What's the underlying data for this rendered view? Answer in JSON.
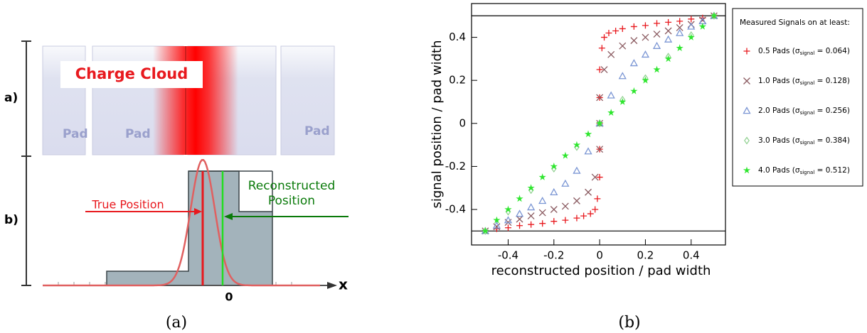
{
  "panel_a": {
    "row_labels": [
      "a)",
      "b)"
    ],
    "charge_cloud": "Charge Cloud",
    "pads": [
      "Pad",
      "Pad",
      "Pad"
    ],
    "true_position": "True Position",
    "reconstructed_position": [
      "Reconstructed",
      "Position"
    ],
    "origin": "0",
    "axis": "x"
  },
  "captions": [
    "(a)",
    "(b)"
  ],
  "chart_data": {
    "type": "scatter",
    "x_label": "reconstructed position / pad width",
    "y_label": "signal position / pad width",
    "legend_title": "Measured Signals on at least:",
    "xlim": [
      -0.56,
      0.55
    ],
    "ylim": [
      -0.565,
      0.557
    ],
    "xticks": [
      -0.4,
      -0.2,
      0,
      0.2,
      0.4
    ],
    "yticks": [
      -0.4,
      -0.2,
      0,
      0.2,
      0.4
    ],
    "hlines": [
      -0.5,
      0.5
    ],
    "series": [
      {
        "name": "0.5 Pads (σ",
        "name_sub": "signal",
        "name_tail": " = 0.064)",
        "color": "#e8191e",
        "marker": "plus",
        "x": [
          -0.45,
          -0.4,
          -0.35,
          -0.3,
          -0.25,
          -0.2,
          -0.15,
          -0.1,
          -0.07,
          -0.04,
          -0.02,
          -0.01,
          0,
          0,
          0,
          0,
          0,
          0.01,
          0.02,
          0.04,
          0.07,
          0.1,
          0.15,
          0.2,
          0.25,
          0.3,
          0.35,
          0.4,
          0.45,
          0.5
        ],
        "values": [
          -0.49,
          -0.485,
          -0.475,
          -0.47,
          -0.465,
          -0.455,
          -0.45,
          -0.44,
          -0.43,
          -0.42,
          -0.4,
          -0.35,
          -0.25,
          -0.12,
          0,
          0.12,
          0.25,
          0.35,
          0.4,
          0.42,
          0.43,
          0.44,
          0.45,
          0.455,
          0.465,
          0.47,
          0.475,
          0.485,
          0.49,
          0.5
        ]
      },
      {
        "name": "1.0 Pads (σ",
        "name_sub": "signal",
        "name_tail": " = 0.128)",
        "color": "#8a5a60",
        "marker": "cross",
        "x": [
          -0.5,
          -0.45,
          -0.4,
          -0.35,
          -0.3,
          -0.25,
          -0.2,
          -0.15,
          -0.1,
          -0.05,
          -0.02,
          0,
          0,
          0,
          0.02,
          0.05,
          0.1,
          0.15,
          0.2,
          0.25,
          0.3,
          0.35,
          0.4,
          0.45,
          0.5
        ],
        "values": [
          -0.5,
          -0.48,
          -0.46,
          -0.445,
          -0.43,
          -0.415,
          -0.4,
          -0.385,
          -0.36,
          -0.32,
          -0.25,
          -0.12,
          0,
          0.12,
          0.25,
          0.32,
          0.36,
          0.385,
          0.4,
          0.415,
          0.43,
          0.445,
          0.46,
          0.48,
          0.5
        ]
      },
      {
        "name": "2.0 Pads (σ",
        "name_sub": "signal",
        "name_tail": " = 0.256)",
        "color": "#7b96d4",
        "marker": "triangle",
        "x": [
          -0.5,
          -0.45,
          -0.4,
          -0.35,
          -0.3,
          -0.25,
          -0.2,
          -0.15,
          -0.1,
          -0.05,
          0,
          0.05,
          0.1,
          0.15,
          0.2,
          0.25,
          0.3,
          0.35,
          0.4,
          0.45,
          0.5
        ],
        "values": [
          -0.5,
          -0.475,
          -0.45,
          -0.42,
          -0.39,
          -0.36,
          -0.32,
          -0.28,
          -0.22,
          -0.13,
          0,
          0.13,
          0.22,
          0.28,
          0.32,
          0.36,
          0.39,
          0.42,
          0.45,
          0.475,
          0.5
        ]
      },
      {
        "name": "3.0 Pads (σ",
        "name_sub": "signal",
        "name_tail": " = 0.384)",
        "color": "#8fd08f",
        "marker": "diamond",
        "x": [
          -0.5,
          -0.4,
          -0.3,
          -0.2,
          -0.1,
          0,
          0.1,
          0.2,
          0.3,
          0.4,
          0.5
        ],
        "values": [
          -0.5,
          -0.41,
          -0.31,
          -0.21,
          -0.11,
          0,
          0.11,
          0.21,
          0.31,
          0.41,
          0.5
        ]
      },
      {
        "name": "4.0 Pads (σ",
        "name_sub": "signal",
        "name_tail": " = 0.512)",
        "color": "#2ee62e",
        "marker": "star",
        "x": [
          -0.5,
          -0.45,
          -0.4,
          -0.35,
          -0.3,
          -0.25,
          -0.2,
          -0.15,
          -0.1,
          -0.05,
          0,
          0.05,
          0.1,
          0.15,
          0.2,
          0.25,
          0.3,
          0.35,
          0.4,
          0.45,
          0.5
        ],
        "values": [
          -0.5,
          -0.45,
          -0.4,
          -0.35,
          -0.3,
          -0.25,
          -0.2,
          -0.15,
          -0.1,
          -0.05,
          0,
          0.05,
          0.1,
          0.15,
          0.2,
          0.25,
          0.3,
          0.35,
          0.4,
          0.45,
          0.5
        ]
      }
    ]
  }
}
